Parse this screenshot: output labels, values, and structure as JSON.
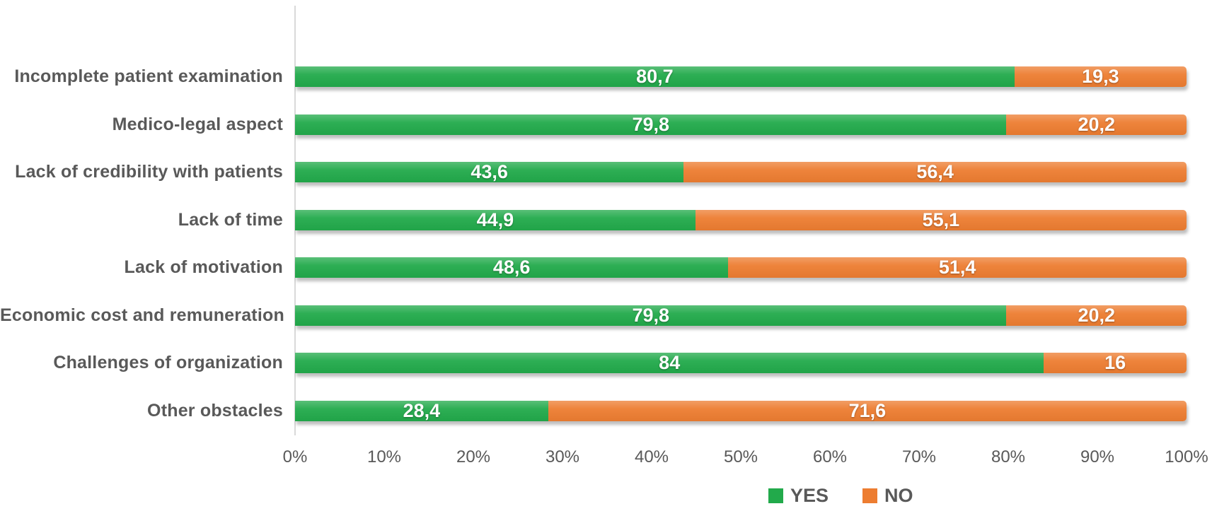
{
  "chart_data": {
    "type": "bar",
    "orientation": "horizontal",
    "stacked": true,
    "unit": "%",
    "title": "",
    "categories": [
      "Incomplete patient examination",
      "Medico-legal aspect",
      "Lack of credibility with patients",
      "Lack of time",
      "Lack of motivation",
      "Economic cost and remuneration",
      "Challenges of organization",
      "Other obstacles"
    ],
    "series": [
      {
        "name": "YES",
        "color": "#22AA4B",
        "values": [
          80.7,
          79.8,
          43.6,
          44.9,
          48.6,
          79.8,
          84,
          28.4
        ],
        "data_labels": [
          "80,7",
          "79,8",
          "43,6",
          "44,9",
          "48,6",
          "79,8",
          "84",
          "28,4"
        ]
      },
      {
        "name": "NO",
        "color": "#ED7D31",
        "values": [
          19.3,
          20.2,
          56.4,
          55.1,
          51.4,
          20.2,
          16,
          71.6
        ],
        "data_labels": [
          "19,3",
          "20,2",
          "56,4",
          "55,1",
          "51,4",
          "20,2",
          "16",
          "71,6"
        ]
      }
    ],
    "x_axis": {
      "min": 0,
      "max": 100,
      "tick_step": 10,
      "tick_labels": [
        "0%",
        "10%",
        "20%",
        "30%",
        "40%",
        "50%",
        "60%",
        "70%",
        "80%",
        "90%",
        "100%"
      ]
    },
    "legend": {
      "position": "bottom",
      "entries": [
        "YES",
        "NO"
      ]
    },
    "grid": false,
    "colors": {
      "category_label": "#595959",
      "tick_label": "#595959",
      "axis_line": "#D9D9D9",
      "value_label": "#FFFFFF"
    }
  }
}
